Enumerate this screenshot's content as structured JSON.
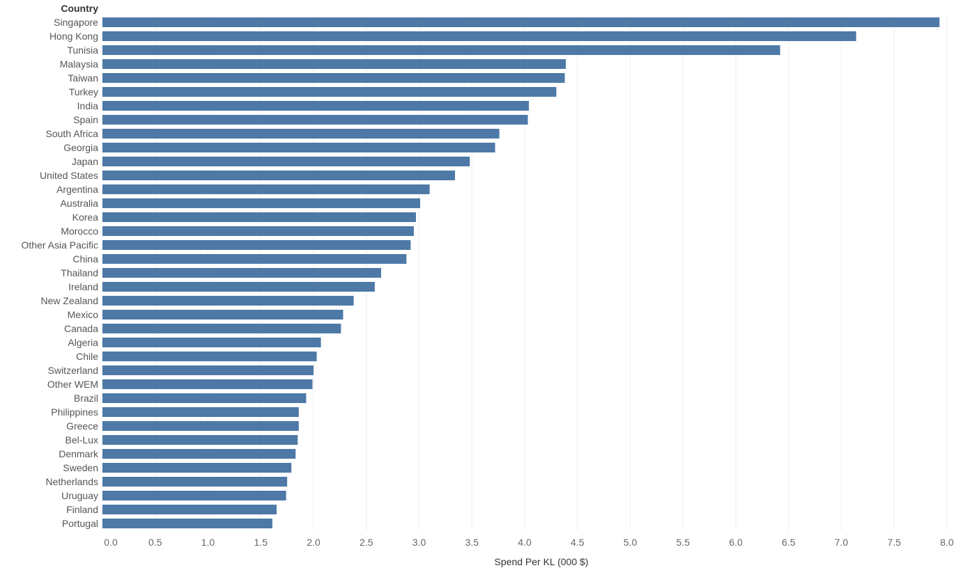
{
  "chart_data": {
    "type": "bar",
    "orientation": "horizontal",
    "row_header": "Country",
    "xlabel": "Spend Per KL  (000 $)",
    "xlim": [
      0,
      8.0
    ],
    "xticks": [
      "0.0",
      "0.5",
      "1.0",
      "1.5",
      "2.0",
      "2.5",
      "3.0",
      "3.5",
      "4.0",
      "4.5",
      "5.0",
      "5.5",
      "6.0",
      "6.5",
      "7.0",
      "7.5",
      "8.0"
    ],
    "grid": true,
    "bar_color": "#4e79a7",
    "categories": [
      "Singapore",
      "Hong Kong",
      "Tunisia",
      "Malaysia",
      "Taiwan",
      "Turkey",
      "India",
      "Spain",
      "South Africa",
      "Georgia",
      "Japan",
      "United States",
      "Argentina",
      "Australia",
      "Korea",
      "Morocco",
      "Other Asia Pacific",
      "China",
      "Thailand",
      "Ireland",
      "New Zealand",
      "Mexico",
      "Canada",
      "Algeria",
      "Chile",
      "Switzerland",
      "Other WEM",
      "Brazil",
      "Philippines",
      "Greece",
      "Bel-Lux",
      "Denmark",
      "Sweden",
      "Netherlands",
      "Uruguay",
      "Finland",
      "Portugal"
    ],
    "values": [
      7.93,
      7.14,
      6.42,
      4.39,
      4.38,
      4.3,
      4.04,
      4.03,
      3.76,
      3.72,
      3.48,
      3.34,
      3.1,
      3.01,
      2.97,
      2.95,
      2.92,
      2.88,
      2.64,
      2.58,
      2.38,
      2.28,
      2.26,
      2.07,
      2.03,
      2.0,
      1.99,
      1.93,
      1.86,
      1.86,
      1.85,
      1.83,
      1.79,
      1.75,
      1.74,
      1.65,
      1.61
    ]
  }
}
